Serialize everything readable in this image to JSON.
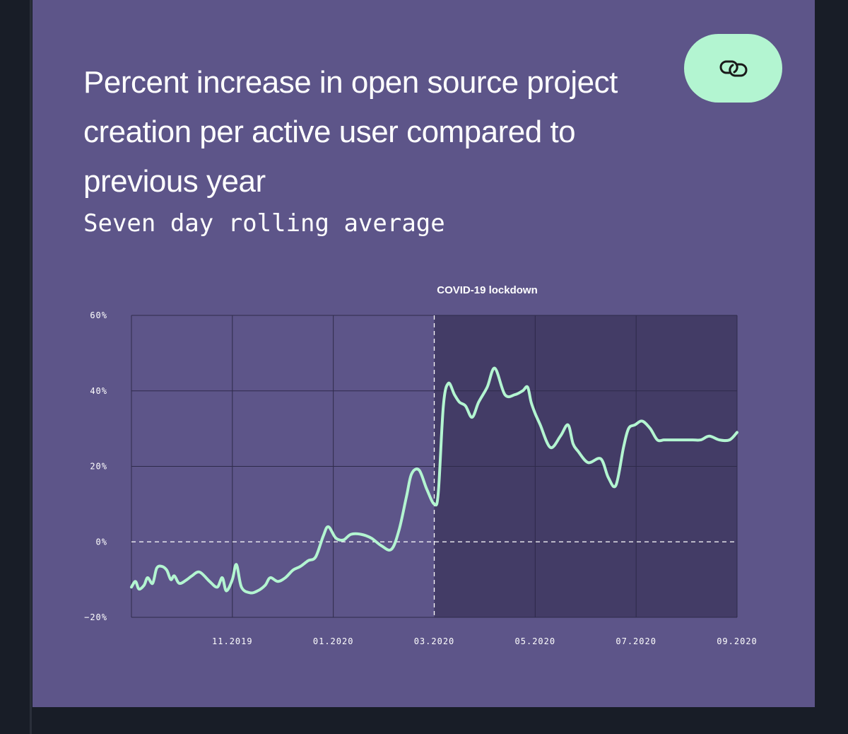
{
  "header": {
    "title": "Percent increase in open source project creation per active user compared to previous year",
    "subtitle": "Seven day rolling average",
    "link_icon": "link-icon"
  },
  "colors": {
    "card": "#5d5589",
    "shaded": "#433c66",
    "line": "#b3f5d1",
    "grid": "#2e2a4a"
  },
  "chart_data": {
    "type": "line",
    "title": "Percent increase in open source project creation per active user compared to previous year",
    "subtitle": "Seven day rolling average",
    "xlabel": "",
    "ylabel": "",
    "ylim": [
      -20,
      60
    ],
    "xlim": [
      -2,
      10
    ],
    "y_ticks": [
      {
        "value": 60,
        "label": "60%"
      },
      {
        "value": 40,
        "label": "40%"
      },
      {
        "value": 20,
        "label": "20%"
      },
      {
        "value": 0,
        "label": "0%"
      },
      {
        "value": -20,
        "label": "−20%"
      }
    ],
    "x_ticks": [
      {
        "value": 0,
        "label": "11.2019"
      },
      {
        "value": 2,
        "label": "01.2020"
      },
      {
        "value": 4,
        "label": "03.2020"
      },
      {
        "value": 6,
        "label": "05.2020"
      },
      {
        "value": 8,
        "label": "07.2020"
      },
      {
        "value": 10,
        "label": "09.2020"
      }
    ],
    "grid": true,
    "annotation": {
      "label": "COVID-19 lockdown",
      "start": 4,
      "end": 10
    },
    "series": [
      {
        "name": "Seven day rolling average",
        "x": [
          -2,
          -1.92,
          -1.85,
          -1.75,
          -1.68,
          -1.58,
          -1.5,
          -1.4,
          -1.3,
          -1.22,
          -1.15,
          -1.05,
          -0.9,
          -0.8,
          -0.65,
          -0.45,
          -0.3,
          -0.2,
          -0.12,
          0.0,
          0.08,
          0.18,
          0.35,
          0.5,
          0.65,
          0.75,
          0.9,
          1.05,
          1.2,
          1.35,
          1.5,
          1.65,
          1.8,
          1.9,
          2.05,
          2.2,
          2.35,
          2.55,
          2.75,
          2.95,
          3.15,
          3.3,
          3.45,
          3.55,
          3.7,
          3.85,
          4.0,
          4.08,
          4.18,
          4.28,
          4.4,
          4.5,
          4.62,
          4.75,
          4.88,
          5.05,
          5.2,
          5.4,
          5.6,
          5.75,
          5.85,
          5.92,
          6.0,
          6.1,
          6.3,
          6.5,
          6.65,
          6.75,
          6.85,
          7.05,
          7.3,
          7.45,
          7.6,
          7.75,
          7.85,
          7.98,
          8.12,
          8.28,
          8.42,
          8.55,
          8.65,
          8.75,
          8.85,
          8.98,
          9.12,
          9.28,
          9.45,
          9.65,
          9.85,
          10.0
        ],
        "values": [
          -12,
          -10.5,
          -12.5,
          -11.5,
          -9.5,
          -11,
          -7,
          -6.5,
          -7.5,
          -10,
          -9,
          -11,
          -10,
          -9,
          -8,
          -10.5,
          -12,
          -9.5,
          -13,
          -10,
          -6,
          -12,
          -13.5,
          -13,
          -11.5,
          -9.5,
          -10.5,
          -9.5,
          -7.5,
          -6.5,
          -5,
          -4,
          1.5,
          4,
          1,
          0.5,
          2,
          2,
          1,
          -1,
          -2,
          3,
          12,
          18,
          19,
          14,
          10,
          13,
          36,
          42,
          39,
          37,
          36,
          33,
          37,
          41,
          46,
          39,
          39,
          40,
          41,
          37,
          34,
          31,
          25,
          28,
          31,
          26,
          24,
          21,
          22,
          17,
          15,
          25,
          30,
          31,
          32,
          30,
          27,
          27,
          27,
          27,
          27,
          27,
          27,
          27,
          28,
          27,
          27,
          29
        ]
      }
    ]
  }
}
